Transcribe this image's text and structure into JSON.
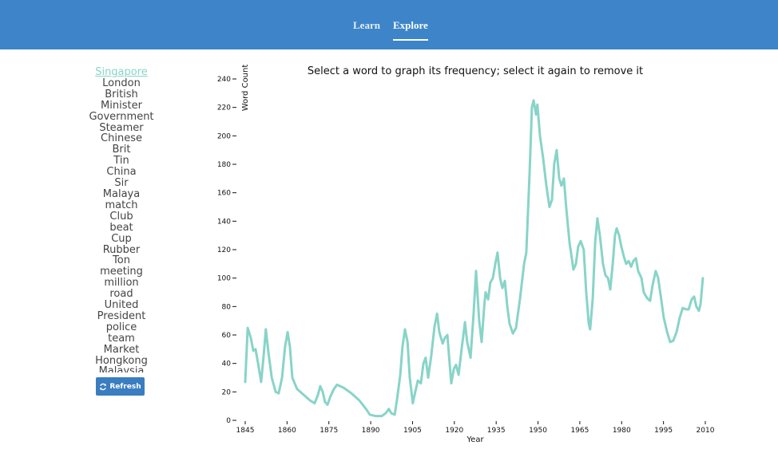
{
  "nav": {
    "items": [
      "Learn",
      "Explore"
    ]
  },
  "sidebar": {
    "words": [
      "Singapore",
      "London",
      "British",
      "Minister",
      "Government",
      "Steamer",
      "Chinese",
      "Brit",
      "Tin",
      "China",
      "Sir",
      "Malaya",
      "match",
      "Club",
      "beat",
      "Cup",
      "Rubber",
      "Ton",
      "meeting",
      "million",
      "road",
      "United",
      "President",
      "police",
      "team",
      "Market",
      "Hongkong",
      "Malaysia"
    ],
    "button": "Refresh"
  },
  "chart_data": {
    "type": "line",
    "title": "Select a word to graph its frequency; select it again to remove it",
    "x_label": "Year",
    "y_label": "Word Count",
    "xlim": [
      1845,
      2010
    ],
    "xticks": [
      1845,
      1860,
      1875,
      1890,
      1905,
      1920,
      1935,
      1950,
      1965,
      1980,
      1995,
      2010
    ],
    "ylim": [
      0,
      240
    ],
    "yticks": [
      0,
      20,
      40,
      60,
      80,
      100,
      120,
      140,
      160,
      180,
      200,
      220,
      240
    ],
    "series": [
      {
        "name": "Singapore",
        "color": "#88d4c8",
        "x": [
          1845.0,
          1845.9,
          1847.0,
          1847.9,
          1848.7,
          1849.6,
          1850.7,
          1851.6,
          1852.4,
          1853.3,
          1854.5,
          1855.9,
          1857.0,
          1858.2,
          1859.3,
          1860.2,
          1861.0,
          1861.9,
          1863.6,
          1865.9,
          1868.2,
          1869.9,
          1871.1,
          1871.9,
          1872.8,
          1873.6,
          1874.5,
          1875.6,
          1876.8,
          1877.9,
          1880.2,
          1883.1,
          1885.9,
          1888.3,
          1889.7,
          1891.7,
          1894.0,
          1895.4,
          1896.5,
          1897.4,
          1898.6,
          1899.4,
          1900.6,
          1901.4,
          1902.3,
          1903.2,
          1904.0,
          1905.1,
          1906.0,
          1906.9,
          1908.0,
          1908.9,
          1909.7,
          1910.6,
          1911.7,
          1912.9,
          1913.8,
          1914.6,
          1915.8,
          1916.6,
          1917.5,
          1918.3,
          1918.9,
          1919.8,
          1920.6,
          1921.5,
          1922.6,
          1923.8,
          1924.6,
          1925.8,
          1926.9,
          1927.8,
          1928.9,
          1929.8,
          1930.7,
          1931.2,
          1932.1,
          1932.9,
          1933.8,
          1934.7,
          1935.5,
          1936.4,
          1937.2,
          1938.1,
          1939.0,
          1939.8,
          1941.0,
          1942.1,
          1943.5,
          1945.0,
          1945.8,
          1947.0,
          1947.8,
          1948.4,
          1949.3,
          1949.8,
          1950.7,
          1951.8,
          1953.0,
          1954.1,
          1955.0,
          1955.8,
          1956.7,
          1957.6,
          1958.4,
          1959.3,
          1960.1,
          1961.3,
          1962.7,
          1963.6,
          1964.4,
          1965.3,
          1966.4,
          1967.3,
          1968.2,
          1968.7,
          1969.6,
          1970.5,
          1971.3,
          1972.2,
          1973.3,
          1974.2,
          1975.1,
          1975.9,
          1976.8,
          1977.6,
          1978.2,
          1979.1,
          1979.9,
          1980.8,
          1981.6,
          1982.5,
          1983.4,
          1984.2,
          1985.1,
          1985.9,
          1987.1,
          1987.9,
          1989.1,
          1990.2,
          1991.1,
          1992.2,
          1993.1,
          1994.2,
          1995.1,
          1996.3,
          1997.4,
          1998.5,
          1999.7,
          2000.8,
          2001.9,
          2003.1,
          2004.0,
          2005.1,
          2006.0,
          2006.8,
          2007.7,
          2008.3,
          2009.1
        ],
        "values": [
          27,
          65,
          58,
          49,
          50,
          40,
          27,
          45,
          64,
          48,
          30,
          20,
          19,
          30,
          52,
          62,
          52,
          30,
          22,
          18,
          14,
          12,
          18,
          24,
          20,
          13,
          11,
          17,
          22,
          25,
          23,
          19,
          14,
          8,
          4,
          3,
          3,
          5,
          8,
          5,
          4,
          14,
          32,
          52,
          64,
          55,
          30,
          12,
          20,
          28,
          26,
          40,
          44,
          30,
          45,
          66,
          75,
          62,
          54,
          58,
          60,
          40,
          26,
          36,
          39,
          32,
          50,
          69,
          55,
          44,
          75,
          105,
          70,
          55,
          80,
          90,
          85,
          97,
          100,
          110,
          118,
          100,
          93,
          98,
          80,
          68,
          61,
          65,
          85,
          110,
          118,
          175,
          220,
          225,
          215,
          222,
          200,
          185,
          165,
          150,
          155,
          180,
          190,
          170,
          165,
          170,
          150,
          125,
          106,
          110,
          122,
          126,
          120,
          90,
          68,
          64,
          85,
          125,
          142,
          130,
          110,
          102,
          100,
          92,
          110,
          130,
          135,
          130,
          122,
          115,
          110,
          112,
          108,
          112,
          114,
          105,
          100,
          90,
          86,
          84,
          95,
          105,
          100,
          85,
          72,
          62,
          55,
          56,
          62,
          72,
          79,
          78,
          78,
          85,
          87,
          80,
          77,
          82,
          100
        ]
      }
    ]
  }
}
